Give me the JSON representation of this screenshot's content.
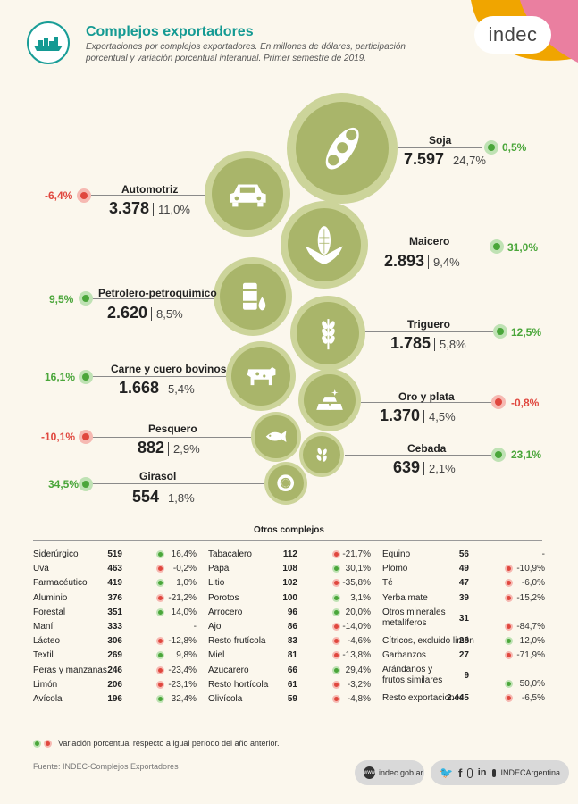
{
  "header": {
    "title": "Complejos exportadores",
    "subtitle": "Exportaciones por complejos exportadores. En millones de dólares, participación porcentual y variación porcentual interanual. Primer semestre de 2019.",
    "logo": "indec"
  },
  "colors": {
    "teal": "#149a93",
    "bubble": "#a9b56a",
    "positive": "#4aa63a",
    "negative": "#e0473e",
    "orange": "#f0a500",
    "pink": "#ea7fa0"
  },
  "chart_data": {
    "type": "bubble",
    "items": [
      {
        "name": "Soja",
        "value": 7597,
        "value_label": "7.597",
        "share": "24,7%",
        "variation": "0,5%",
        "trend": "pos",
        "icon": "soy-pod-icon"
      },
      {
        "name": "Automotriz",
        "value": 3378,
        "value_label": "3.378",
        "share": "11,0%",
        "variation": "-6,4%",
        "trend": "neg",
        "icon": "car-icon"
      },
      {
        "name": "Maicero",
        "value": 2893,
        "value_label": "2.893",
        "share": "9,4%",
        "variation": "31,0%",
        "trend": "pos",
        "icon": "corn-icon"
      },
      {
        "name": "Petrolero-petroquímico",
        "value": 2620,
        "value_label": "2.620",
        "share": "8,5%",
        "variation": "9,5%",
        "trend": "pos",
        "icon": "oil-barrel-icon"
      },
      {
        "name": "Triguero",
        "value": 1785,
        "value_label": "1.785",
        "share": "5,8%",
        "variation": "12,5%",
        "trend": "pos",
        "icon": "wheat-icon"
      },
      {
        "name": "Carne y cuero bovinos",
        "value": 1668,
        "value_label": "1.668",
        "share": "5,4%",
        "variation": "16,1%",
        "trend": "pos",
        "icon": "cow-icon"
      },
      {
        "name": "Oro y plata",
        "value": 1370,
        "value_label": "1.370",
        "share": "4,5%",
        "variation": "-0,8%",
        "trend": "neg",
        "icon": "gold-bars-icon"
      },
      {
        "name": "Pesquero",
        "value": 882,
        "value_label": "882",
        "share": "2,9%",
        "variation": "-10,1%",
        "trend": "neg",
        "icon": "fish-icon"
      },
      {
        "name": "Cebada",
        "value": 639,
        "value_label": "639",
        "share": "2,1%",
        "variation": "23,1%",
        "trend": "pos",
        "icon": "barley-icon"
      },
      {
        "name": "Girasol",
        "value": 554,
        "value_label": "554",
        "share": "1,8%",
        "variation": "34,5%",
        "trend": "pos",
        "icon": "sunflower-icon"
      }
    ]
  },
  "otros": {
    "title": "Otros complejos",
    "columns": [
      [
        {
          "name": "Siderúrgico",
          "value": "519",
          "variation": "16,4%",
          "trend": "pos"
        },
        {
          "name": "Uva",
          "value": "463",
          "variation": "-0,2%",
          "trend": "neg"
        },
        {
          "name": "Farmacéutico",
          "value": "419",
          "variation": "1,0%",
          "trend": "pos"
        },
        {
          "name": "Aluminio",
          "value": "376",
          "variation": "-21,2%",
          "trend": "neg"
        },
        {
          "name": "Forestal",
          "value": "351",
          "variation": "14,0%",
          "trend": "pos"
        },
        {
          "name": "Maní",
          "value": "333",
          "variation": "-",
          "trend": "none"
        },
        {
          "name": "Lácteo",
          "value": "306",
          "variation": "-12,8%",
          "trend": "neg"
        },
        {
          "name": "Textil",
          "value": "269",
          "variation": "9,8%",
          "trend": "pos"
        },
        {
          "name": "Peras y manzanas",
          "value": "246",
          "variation": "-23,4%",
          "trend": "neg"
        },
        {
          "name": "Limón",
          "value": "206",
          "variation": "-23,1%",
          "trend": "neg"
        },
        {
          "name": "Avícola",
          "value": "196",
          "variation": "32,4%",
          "trend": "pos"
        }
      ],
      [
        {
          "name": "Tabacalero",
          "value": "112",
          "variation": "-21,7%",
          "trend": "neg"
        },
        {
          "name": "Papa",
          "value": "108",
          "variation": "30,1%",
          "trend": "pos"
        },
        {
          "name": "Litio",
          "value": "102",
          "variation": "-35,8%",
          "trend": "neg"
        },
        {
          "name": "Porotos",
          "value": "100",
          "variation": "3,1%",
          "trend": "pos"
        },
        {
          "name": "Arrocero",
          "value": "96",
          "variation": "20,0%",
          "trend": "pos"
        },
        {
          "name": "Ajo",
          "value": "86",
          "variation": "-14,0%",
          "trend": "neg"
        },
        {
          "name": "Resto frutícola",
          "value": "83",
          "variation": "-4,6%",
          "trend": "neg"
        },
        {
          "name": "Miel",
          "value": "81",
          "variation": "-13,8%",
          "trend": "neg"
        },
        {
          "name": "Azucarero",
          "value": "66",
          "variation": "29,4%",
          "trend": "pos"
        },
        {
          "name": "Resto hortícola",
          "value": "61",
          "variation": "-3,2%",
          "trend": "neg"
        },
        {
          "name": "Olivícola",
          "value": "59",
          "variation": "-4,8%",
          "trend": "neg"
        }
      ],
      [
        {
          "name": "Equino",
          "value": "56",
          "variation": "-",
          "trend": "none"
        },
        {
          "name": "Plomo",
          "value": "49",
          "variation": "-10,9%",
          "trend": "neg"
        },
        {
          "name": "Té",
          "value": "47",
          "variation": "-6,0%",
          "trend": "neg"
        },
        {
          "name": "Yerba mate",
          "value": "39",
          "variation": "-15,2%",
          "trend": "neg"
        },
        {
          "name": "Otros minerales metalíferos",
          "value": "31",
          "variation": "-84,7%",
          "trend": "neg",
          "tall": true
        },
        {
          "name": "Cítricos, excluido limón",
          "value": "28",
          "variation": "12,0%",
          "trend": "pos"
        },
        {
          "name": "Garbanzos",
          "value": "27",
          "variation": "-71,9%",
          "trend": "neg"
        },
        {
          "name": "Arándanos y frutos similares",
          "value": "9",
          "variation": "50,0%",
          "trend": "pos",
          "tall": true
        },
        {
          "name": "Resto exportaciones",
          "value": "2.445",
          "variation": "-6,5%",
          "trend": "neg"
        }
      ]
    ]
  },
  "legend": "Variación porcentual respecto a igual período del año anterior.",
  "source": "Fuente: INDEC-Complejos Exportadores",
  "footer": {
    "website": "indec.gob.ar",
    "handle": "INDECArgentina"
  }
}
